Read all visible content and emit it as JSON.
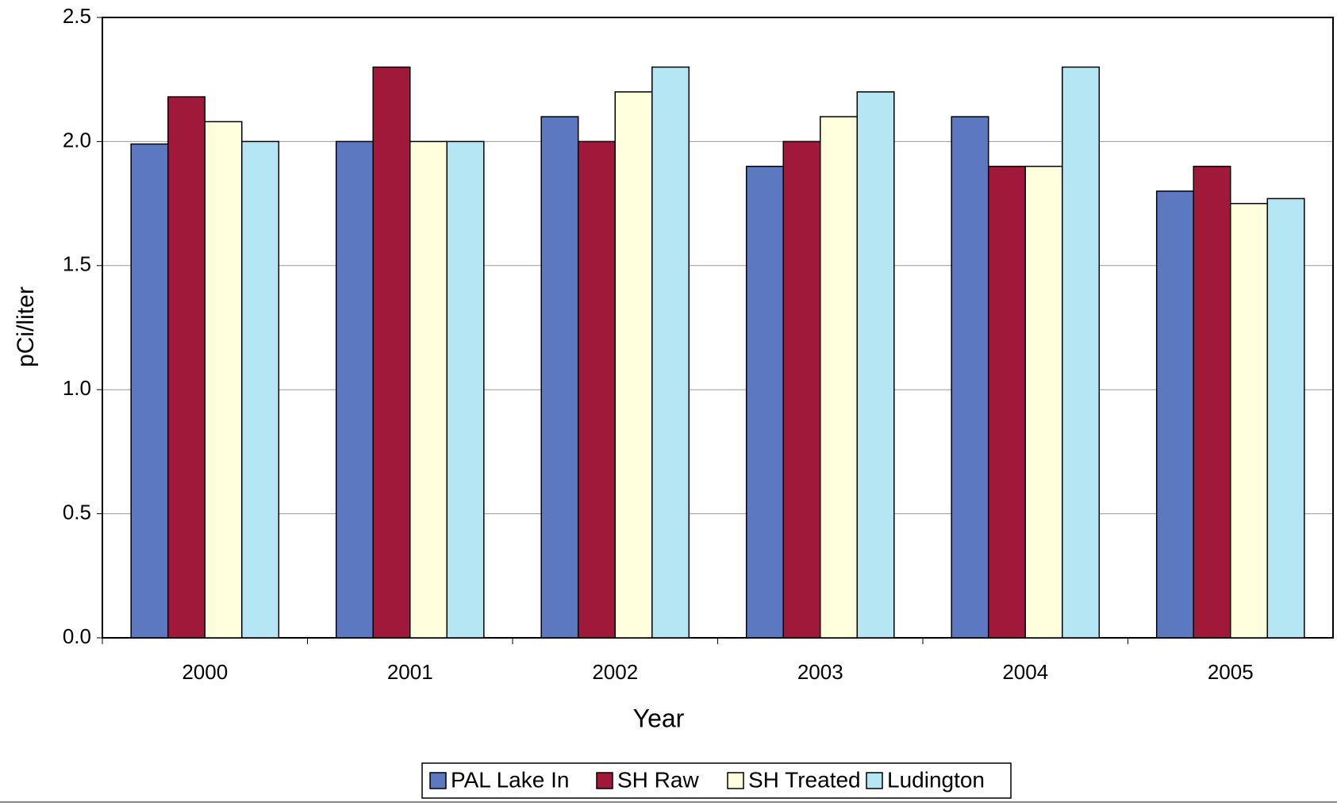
{
  "chart_data": {
    "type": "bar",
    "x_label": "Year",
    "y_label": "pCi/liter",
    "categories": [
      "2000",
      "2001",
      "2002",
      "2003",
      "2004",
      "2005"
    ],
    "series": [
      {
        "name": "PAL Lake In",
        "color": "#5b78c0",
        "values": [
          1.99,
          2.0,
          2.1,
          1.9,
          2.1,
          1.8
        ]
      },
      {
        "name": "SH Raw",
        "color": "#a0183a",
        "values": [
          2.18,
          2.3,
          2.0,
          2.0,
          1.9,
          1.9
        ]
      },
      {
        "name": "SH Treated",
        "color": "#ffffdd",
        "values": [
          2.08,
          2.0,
          2.2,
          2.1,
          1.9,
          1.75
        ]
      },
      {
        "name": "Ludington",
        "color": "#b5e6f3",
        "values": [
          2.0,
          2.0,
          2.3,
          2.2,
          2.3,
          1.77
        ]
      }
    ],
    "ylim": [
      0,
      2.5
    ],
    "yticks": [
      {
        "value": 0,
        "label": "0.0"
      },
      0.5,
      {
        "value": 1,
        "label": "1.0"
      },
      1.5,
      {
        "value": 2,
        "label": "2.0"
      },
      2.5
    ],
    "grid": true,
    "legend": "bottom"
  }
}
